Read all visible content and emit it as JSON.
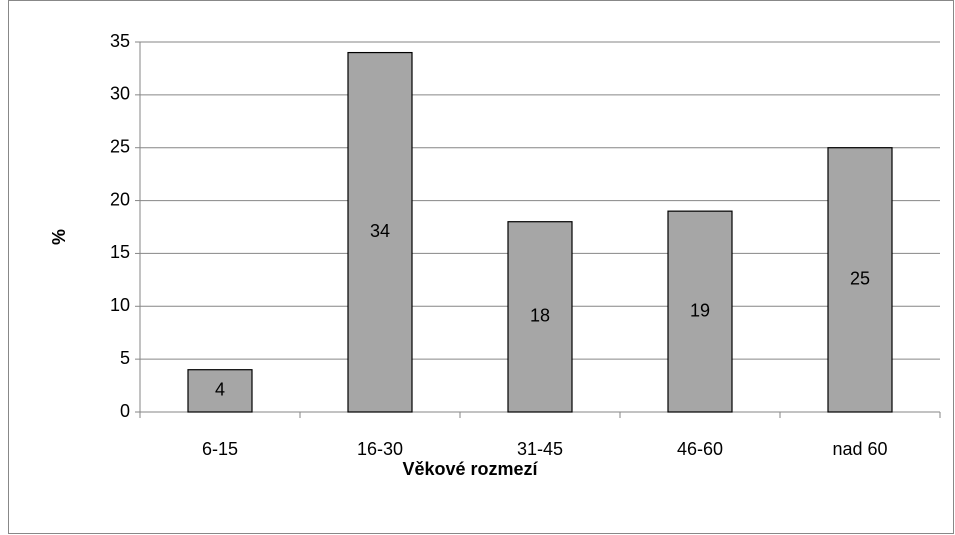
{
  "chart_data": {
    "type": "bar",
    "x_label": "Věkové rozmezí",
    "y_label": "%",
    "categories": [
      "6-15",
      "16-30",
      "31-45",
      "46-60",
      "nad 60"
    ],
    "values": [
      4,
      34,
      18,
      19,
      25
    ],
    "color": "#a6a6a6",
    "ylim": [
      0,
      35
    ],
    "yticks": [
      0,
      5,
      10,
      15,
      20,
      25,
      30,
      35
    ],
    "grid": true
  }
}
